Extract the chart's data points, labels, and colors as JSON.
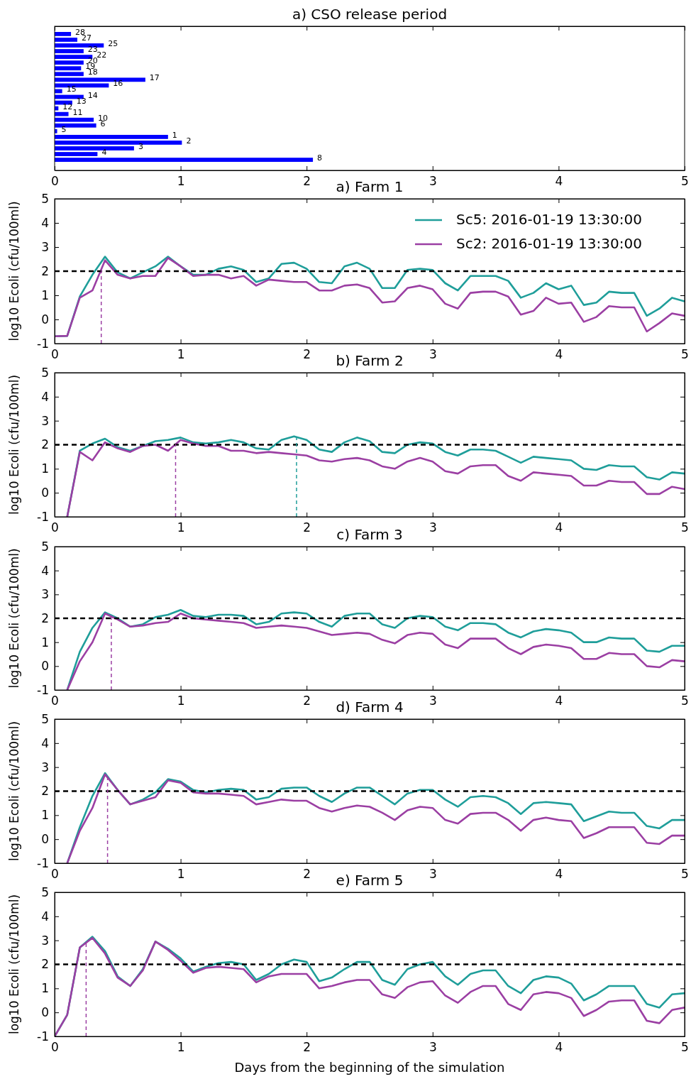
{
  "chart_data": [
    {
      "type": "bar",
      "title": "a) CSO release period",
      "orientation": "horizontal",
      "categories": [
        "28",
        "27",
        "25",
        "23",
        "22",
        "20",
        "19",
        "18",
        "17",
        "16",
        "15",
        "14",
        "13",
        "12",
        "11",
        "10",
        "6",
        "5",
        "1",
        "2",
        "3",
        "4",
        "8"
      ],
      "values": [
        0.13,
        0.18,
        0.39,
        0.23,
        0.3,
        0.23,
        0.21,
        0.23,
        0.72,
        0.43,
        0.06,
        0.23,
        0.14,
        0.03,
        0.11,
        0.31,
        0.33,
        0.02,
        0.9,
        1.01,
        0.63,
        0.34,
        2.05
      ],
      "color": "#0000ff",
      "xlim": [
        0,
        5
      ],
      "xticks": [
        0,
        1,
        2,
        3,
        4,
        5
      ]
    },
    {
      "type": "line",
      "title": "a) Farm 1",
      "ylabel": "log10 Ecoli (cfu/100ml)",
      "legend": "top right",
      "xlim": [
        0,
        5
      ],
      "xticks": [
        0,
        1,
        2,
        3,
        4,
        5
      ],
      "ylim": [
        -1,
        5
      ],
      "yticks": [
        -1,
        0,
        1,
        2,
        3,
        4,
        5
      ],
      "x": [
        0,
        0.1,
        0.2,
        0.3,
        0.4,
        0.5,
        0.6,
        0.7,
        0.8,
        0.9,
        1,
        1.1,
        1.2,
        1.3,
        1.4,
        1.5,
        1.6,
        1.7,
        1.8,
        1.9,
        2,
        2.1,
        2.2,
        2.3,
        2.4,
        2.5,
        2.6,
        2.7,
        2.8,
        2.9,
        3,
        3.1,
        3.2,
        3.3,
        3.4,
        3.5,
        3.6,
        3.7,
        3.8,
        3.9,
        4,
        4.1,
        4.2,
        4.3,
        4.4,
        4.5,
        4.6,
        4.7,
        4.8,
        4.9,
        5
      ],
      "series": [
        {
          "name": "Sc5: 2016-01-19 13:30:00",
          "color": "#1f9e9a",
          "values": [
            -0.7,
            -0.68,
            0.95,
            1.85,
            2.6,
            1.95,
            1.7,
            1.95,
            2.2,
            2.6,
            2.2,
            1.85,
            1.85,
            2.1,
            2.2,
            2.05,
            1.55,
            1.7,
            2.3,
            2.35,
            2.1,
            1.55,
            1.5,
            2.2,
            2.35,
            2.1,
            1.3,
            1.3,
            2.05,
            2.1,
            2.05,
            1.5,
            1.2,
            1.8,
            1.8,
            1.8,
            1.6,
            0.9,
            1.1,
            1.5,
            1.25,
            1.4,
            0.6,
            0.7,
            1.15,
            1.1,
            1.1,
            0.15,
            0.45,
            0.9,
            0.75
          ]
        },
        {
          "name": "Sc2: 2016-01-19 13:30:00",
          "color": "#9b3fa3",
          "values": [
            -0.7,
            -0.68,
            0.9,
            1.2,
            2.45,
            1.85,
            1.7,
            1.8,
            1.8,
            2.55,
            2.2,
            1.8,
            1.85,
            1.85,
            1.7,
            1.8,
            1.4,
            1.65,
            1.6,
            1.55,
            1.55,
            1.2,
            1.2,
            1.4,
            1.45,
            1.3,
            0.7,
            0.75,
            1.3,
            1.4,
            1.25,
            0.65,
            0.45,
            1.1,
            1.15,
            1.15,
            0.95,
            0.2,
            0.35,
            0.9,
            0.65,
            0.7,
            -0.1,
            0.1,
            0.55,
            0.5,
            0.5,
            -0.5,
            -0.15,
            0.25,
            0.15
          ]
        }
      ],
      "ref_lines": [
        {
          "axis": "y",
          "value": 2,
          "color": "#000000",
          "line_style": "dashed"
        },
        {
          "axis": "x",
          "value": 0.37,
          "color": "#9b3fa3",
          "line_style": "dashed"
        }
      ]
    },
    {
      "type": "line",
      "title": "b) Farm 2",
      "ylabel": "log10 Ecoli (cfu/100ml)",
      "xlim": [
        0,
        5
      ],
      "xticks": [
        0,
        1,
        2,
        3,
        4,
        5
      ],
      "ylim": [
        -1,
        5
      ],
      "yticks": [
        -1,
        0,
        1,
        2,
        3,
        4,
        5
      ],
      "x": [
        0.1,
        0.2,
        0.3,
        0.4,
        0.5,
        0.6,
        0.7,
        0.8,
        0.9,
        1,
        1.1,
        1.2,
        1.3,
        1.4,
        1.5,
        1.6,
        1.7,
        1.8,
        1.9,
        2,
        2.1,
        2.2,
        2.3,
        2.4,
        2.5,
        2.6,
        2.7,
        2.8,
        2.9,
        3,
        3.1,
        3.2,
        3.3,
        3.4,
        3.5,
        3.6,
        3.7,
        3.8,
        3.9,
        4,
        4.1,
        4.2,
        4.3,
        4.4,
        4.5,
        4.6,
        4.7,
        4.8,
        4.9,
        5
      ],
      "series": [
        {
          "color": "#1f9e9a",
          "values": [
            -1.0,
            1.75,
            2.05,
            2.25,
            1.9,
            1.75,
            1.95,
            2.15,
            2.2,
            2.3,
            2.1,
            2.05,
            2.1,
            2.2,
            2.1,
            1.85,
            1.8,
            2.2,
            2.35,
            2.2,
            1.8,
            1.7,
            2.1,
            2.3,
            2.15,
            1.7,
            1.65,
            2.0,
            2.1,
            2.05,
            1.7,
            1.55,
            1.8,
            1.8,
            1.75,
            1.5,
            1.25,
            1.5,
            1.45,
            1.4,
            1.35,
            1.0,
            0.95,
            1.15,
            1.1,
            1.1,
            0.65,
            0.55,
            0.85,
            0.8
          ]
        },
        {
          "color": "#9b3fa3",
          "values": [
            -1.0,
            1.7,
            1.35,
            2.1,
            1.85,
            1.7,
            1.95,
            2.0,
            1.75,
            2.2,
            2.05,
            1.95,
            1.95,
            1.75,
            1.75,
            1.65,
            1.7,
            1.65,
            1.6,
            1.55,
            1.35,
            1.3,
            1.4,
            1.45,
            1.35,
            1.1,
            1.0,
            1.3,
            1.45,
            1.3,
            0.9,
            0.8,
            1.1,
            1.15,
            1.15,
            0.7,
            0.5,
            0.85,
            0.8,
            0.75,
            0.7,
            0.3,
            0.3,
            0.5,
            0.45,
            0.45,
            -0.05,
            -0.05,
            0.25,
            0.15
          ]
        }
      ],
      "ref_lines": [
        {
          "axis": "y",
          "value": 2,
          "color": "#000000",
          "line_style": "dashed"
        },
        {
          "axis": "x",
          "value": 0.96,
          "color": "#9b3fa3",
          "line_style": "dashed"
        },
        {
          "axis": "x",
          "value": 1.92,
          "color": "#1f9e9a",
          "line_style": "dashed"
        }
      ]
    },
    {
      "type": "line",
      "title": "c) Farm 3",
      "ylabel": "log10 Ecoli (cfu/100ml)",
      "xlim": [
        0,
        5
      ],
      "xticks": [
        0,
        1,
        2,
        3,
        4,
        5
      ],
      "ylim": [
        -1,
        5
      ],
      "yticks": [
        -1,
        0,
        1,
        2,
        3,
        4,
        5
      ],
      "x": [
        0.1,
        0.2,
        0.3,
        0.4,
        0.5,
        0.6,
        0.7,
        0.8,
        0.9,
        1,
        1.1,
        1.2,
        1.3,
        1.4,
        1.5,
        1.6,
        1.7,
        1.8,
        1.9,
        2,
        2.1,
        2.2,
        2.3,
        2.4,
        2.5,
        2.6,
        2.7,
        2.8,
        2.9,
        3,
        3.1,
        3.2,
        3.3,
        3.4,
        3.5,
        3.6,
        3.7,
        3.8,
        3.9,
        4,
        4.1,
        4.2,
        4.3,
        4.4,
        4.5,
        4.6,
        4.7,
        4.8,
        4.9,
        5
      ],
      "series": [
        {
          "color": "#1f9e9a",
          "values": [
            -1.0,
            0.6,
            1.6,
            2.25,
            2.0,
            1.65,
            1.75,
            2.05,
            2.15,
            2.35,
            2.1,
            2.05,
            2.15,
            2.15,
            2.1,
            1.75,
            1.85,
            2.2,
            2.25,
            2.2,
            1.85,
            1.65,
            2.1,
            2.2,
            2.2,
            1.75,
            1.6,
            2.0,
            2.1,
            2.05,
            1.65,
            1.5,
            1.8,
            1.8,
            1.75,
            1.4,
            1.2,
            1.45,
            1.55,
            1.5,
            1.4,
            1.0,
            1.0,
            1.2,
            1.15,
            1.15,
            0.65,
            0.6,
            0.85,
            0.85
          ]
        },
        {
          "color": "#9b3fa3",
          "values": [
            -1.0,
            0.2,
            1.0,
            2.2,
            1.95,
            1.65,
            1.7,
            1.8,
            1.85,
            2.2,
            2.0,
            1.95,
            1.9,
            1.85,
            1.8,
            1.6,
            1.65,
            1.7,
            1.65,
            1.6,
            1.45,
            1.3,
            1.35,
            1.4,
            1.35,
            1.1,
            0.95,
            1.3,
            1.4,
            1.35,
            0.9,
            0.75,
            1.15,
            1.15,
            1.15,
            0.75,
            0.5,
            0.8,
            0.9,
            0.85,
            0.75,
            0.3,
            0.3,
            0.55,
            0.5,
            0.5,
            0.0,
            -0.05,
            0.25,
            0.2
          ]
        }
      ],
      "ref_lines": [
        {
          "axis": "y",
          "value": 2,
          "color": "#000000",
          "line_style": "dashed"
        },
        {
          "axis": "x",
          "value": 0.45,
          "color": "#9b3fa3",
          "line_style": "dashed"
        }
      ]
    },
    {
      "type": "line",
      "title": "d) Farm 4",
      "ylabel": "log10 Ecoli (cfu/100ml)",
      "xlim": [
        0,
        5
      ],
      "xticks": [
        0,
        1,
        2,
        3,
        4,
        5
      ],
      "ylim": [
        -1,
        5
      ],
      "yticks": [
        -1,
        0,
        1,
        2,
        3,
        4,
        5
      ],
      "x": [
        0.1,
        0.2,
        0.3,
        0.4,
        0.5,
        0.6,
        0.7,
        0.8,
        0.9,
        1,
        1.1,
        1.2,
        1.3,
        1.4,
        1.5,
        1.6,
        1.7,
        1.8,
        1.9,
        2,
        2.1,
        2.2,
        2.3,
        2.4,
        2.5,
        2.6,
        2.7,
        2.8,
        2.9,
        3,
        3.1,
        3.2,
        3.3,
        3.4,
        3.5,
        3.6,
        3.7,
        3.8,
        3.9,
        4,
        4.1,
        4.2,
        4.3,
        4.4,
        4.5,
        4.6,
        4.7,
        4.8,
        4.9,
        5
      ],
      "series": [
        {
          "color": "#1f9e9a",
          "values": [
            -1.0,
            0.5,
            1.8,
            2.75,
            2.05,
            1.45,
            1.65,
            1.95,
            2.5,
            2.4,
            2.05,
            1.95,
            2.05,
            2.1,
            2.05,
            1.65,
            1.75,
            2.1,
            2.15,
            2.15,
            1.8,
            1.55,
            1.9,
            2.15,
            2.15,
            1.8,
            1.45,
            1.9,
            2.05,
            2.05,
            1.65,
            1.35,
            1.75,
            1.8,
            1.75,
            1.5,
            1.05,
            1.5,
            1.55,
            1.5,
            1.45,
            0.75,
            0.95,
            1.15,
            1.1,
            1.1,
            0.55,
            0.45,
            0.8,
            0.8
          ]
        },
        {
          "color": "#9b3fa3",
          "values": [
            -1.0,
            0.35,
            1.3,
            2.7,
            2.05,
            1.45,
            1.6,
            1.75,
            2.45,
            2.35,
            1.95,
            1.9,
            1.9,
            1.85,
            1.8,
            1.45,
            1.55,
            1.65,
            1.6,
            1.6,
            1.3,
            1.15,
            1.3,
            1.4,
            1.35,
            1.1,
            0.8,
            1.2,
            1.35,
            1.3,
            0.8,
            0.65,
            1.05,
            1.1,
            1.1,
            0.8,
            0.35,
            0.8,
            0.9,
            0.8,
            0.75,
            0.05,
            0.25,
            0.5,
            0.5,
            0.5,
            -0.15,
            -0.2,
            0.15,
            0.15
          ]
        }
      ],
      "ref_lines": [
        {
          "axis": "y",
          "value": 2,
          "color": "#000000",
          "line_style": "dashed"
        },
        {
          "axis": "x",
          "value": 0.42,
          "color": "#9b3fa3",
          "line_style": "dashed"
        }
      ]
    },
    {
      "type": "line",
      "title": "e) Farm 5",
      "xlabel": "Days from the beginning of the simulation",
      "ylabel": "log10 Ecoli (cfu/100ml)",
      "xlim": [
        0,
        5
      ],
      "xticks": [
        0,
        1,
        2,
        3,
        4,
        5
      ],
      "ylim": [
        -1,
        5
      ],
      "yticks": [
        -1,
        0,
        1,
        2,
        3,
        4,
        5
      ],
      "x": [
        0,
        0.1,
        0.2,
        0.3,
        0.4,
        0.5,
        0.6,
        0.7,
        0.8,
        0.9,
        1,
        1.1,
        1.2,
        1.3,
        1.4,
        1.5,
        1.6,
        1.7,
        1.8,
        1.9,
        2,
        2.1,
        2.2,
        2.3,
        2.4,
        2.5,
        2.6,
        2.7,
        2.8,
        2.9,
        3,
        3.1,
        3.2,
        3.3,
        3.4,
        3.5,
        3.6,
        3.7,
        3.8,
        3.9,
        4,
        4.1,
        4.2,
        4.3,
        4.4,
        4.5,
        4.6,
        4.7,
        4.8,
        4.9,
        5
      ],
      "series": [
        {
          "color": "#1f9e9a",
          "values": [
            -1.0,
            -0.1,
            2.7,
            3.15,
            2.55,
            1.5,
            1.1,
            1.8,
            2.95,
            2.65,
            2.25,
            1.7,
            1.9,
            2.05,
            2.1,
            2.0,
            1.35,
            1.6,
            2.0,
            2.2,
            2.1,
            1.3,
            1.45,
            1.8,
            2.1,
            2.1,
            1.35,
            1.15,
            1.8,
            2.0,
            2.1,
            1.5,
            1.15,
            1.6,
            1.75,
            1.75,
            1.1,
            0.8,
            1.35,
            1.5,
            1.45,
            1.2,
            0.5,
            0.75,
            1.1,
            1.1,
            1.1,
            0.35,
            0.2,
            0.75,
            0.8
          ]
        },
        {
          "color": "#9b3fa3",
          "values": [
            -1.0,
            -0.1,
            2.7,
            3.1,
            2.45,
            1.45,
            1.1,
            1.75,
            2.95,
            2.6,
            2.15,
            1.65,
            1.85,
            1.9,
            1.85,
            1.8,
            1.25,
            1.5,
            1.6,
            1.6,
            1.6,
            1.0,
            1.1,
            1.25,
            1.35,
            1.35,
            0.75,
            0.6,
            1.05,
            1.25,
            1.3,
            0.7,
            0.4,
            0.85,
            1.1,
            1.1,
            0.35,
            0.1,
            0.75,
            0.85,
            0.8,
            0.6,
            -0.15,
            0.1,
            0.45,
            0.5,
            0.5,
            -0.35,
            -0.45,
            0.1,
            0.2
          ]
        }
      ],
      "ref_lines": [
        {
          "axis": "y",
          "value": 2,
          "color": "#000000",
          "line_style": "dashed"
        },
        {
          "axis": "x",
          "value": 0.25,
          "color": "#9b3fa3",
          "line_style": "dashed"
        }
      ]
    }
  ]
}
